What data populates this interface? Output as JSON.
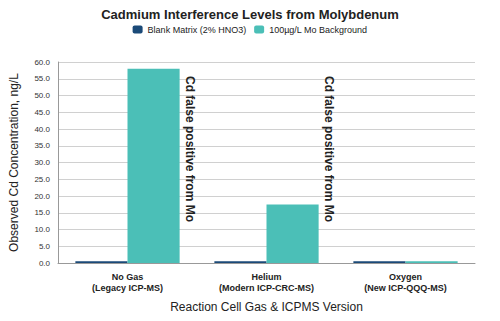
{
  "chart_data": {
    "type": "bar",
    "title": "Cadmium Interference Levels from Molybdenum",
    "x_label": "Reaction Cell Gas & ICPMS Version",
    "y_label": "Observed Cd Concentration, ng/L",
    "categories": [
      "No Gas\n(Legacy ICP-MS)",
      "Helium\n(Modern ICP-CRC-MS)",
      "Oxygen\n(New ICP-QQQ-MS)"
    ],
    "series": [
      {
        "name": "Blank Matrix (2% HNO3)",
        "color": "#1b4a78",
        "values": [
          0.5,
          0.5,
          0.5
        ]
      },
      {
        "name": "100µg/L Mo Background",
        "color": "#4bbfb7",
        "values": [
          58.0,
          17.5,
          0.5
        ]
      }
    ],
    "ylim": [
      0,
      60
    ],
    "yticks": [
      {
        "value": 0,
        "label": "0.0"
      },
      {
        "value": 5,
        "label": "5.0"
      },
      {
        "value": 10,
        "label": "10.0"
      },
      {
        "value": 15,
        "label": "15.0"
      },
      {
        "value": 20,
        "label": "20.0"
      },
      {
        "value": 25,
        "label": "25.0"
      },
      {
        "value": 30,
        "label": "30.0"
      },
      {
        "value": 35,
        "label": "35.0"
      },
      {
        "value": 40,
        "label": "40.0"
      },
      {
        "value": 45,
        "label": "45.0"
      },
      {
        "value": 50,
        "label": "50.0"
      },
      {
        "value": 55,
        "label": "55.0"
      },
      {
        "value": 60,
        "label": "60.0"
      }
    ],
    "grid": true,
    "legend": "top",
    "annotations": [
      {
        "text": "Cd false positive from Mo",
        "category": "No Gas\n(Legacy ICP-MS)"
      },
      {
        "text": "Cd false positive from Mo",
        "category": "Helium\n(Modern ICP-CRC-MS)"
      }
    ]
  }
}
